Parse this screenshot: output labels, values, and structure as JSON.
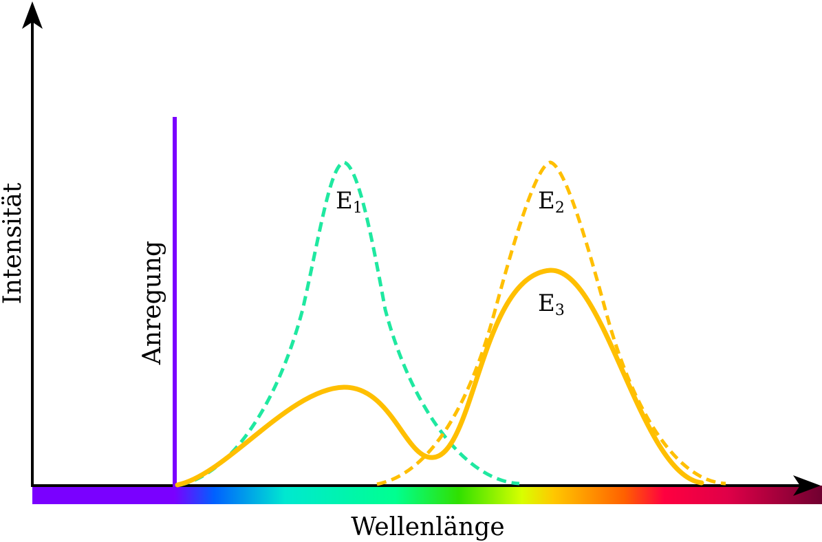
{
  "axes": {
    "y_label": "Intensität",
    "x_label": "Wellenlänge"
  },
  "labels": {
    "excitation": "Anregung",
    "e1_main": "E",
    "e1_sub": "1",
    "e2_main": "E",
    "e2_sub": "2",
    "e3_main": "E",
    "e3_sub": "3"
  },
  "colors": {
    "excitation_line": "#7a00ff",
    "e1": "#1fe8a0",
    "e2": "#ffbf00",
    "e3": "#ffbf00",
    "axis": "#000000"
  },
  "spectrum_stops": [
    {
      "offset": 0.0,
      "color": "#7a00ff"
    },
    {
      "offset": 0.18,
      "color": "#7a00ff"
    },
    {
      "offset": 0.23,
      "color": "#0060ff"
    },
    {
      "offset": 0.32,
      "color": "#00e8d0"
    },
    {
      "offset": 0.46,
      "color": "#00ff90"
    },
    {
      "offset": 0.54,
      "color": "#30e000"
    },
    {
      "offset": 0.62,
      "color": "#d8ff00"
    },
    {
      "offset": 0.66,
      "color": "#ffc800"
    },
    {
      "offset": 0.75,
      "color": "#ff6000"
    },
    {
      "offset": 0.8,
      "color": "#ff0040"
    },
    {
      "offset": 0.88,
      "color": "#e00048"
    },
    {
      "offset": 1.0,
      "color": "#700030"
    }
  ]
}
